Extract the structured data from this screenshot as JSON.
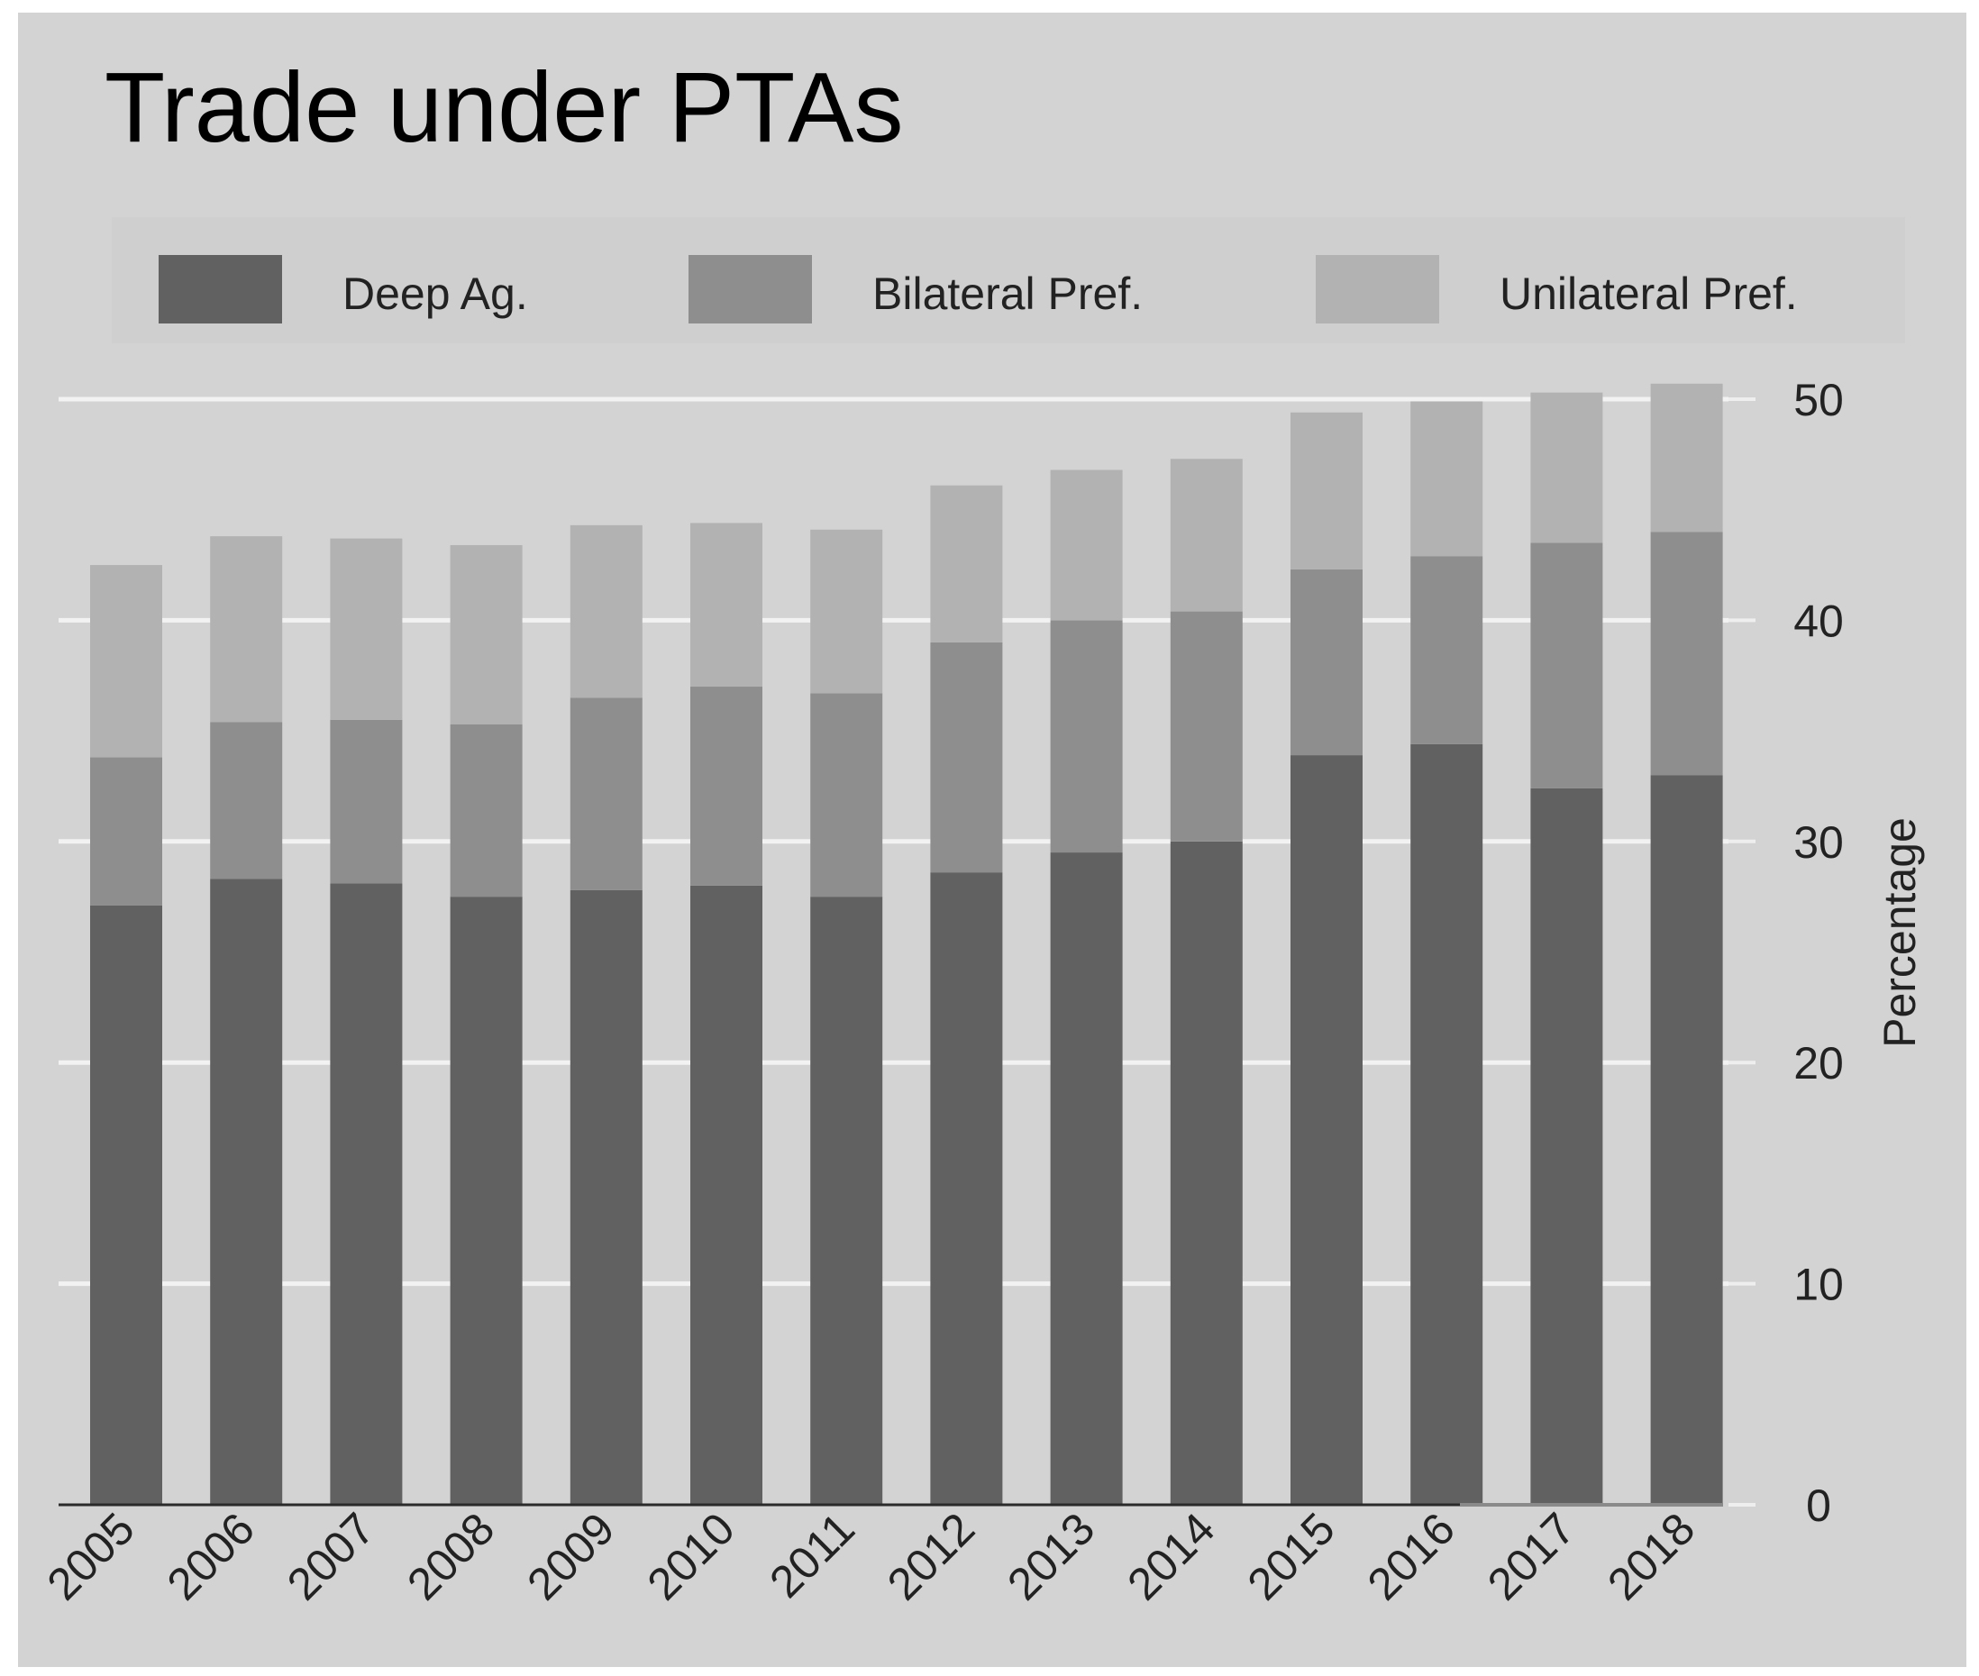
{
  "chart_data": {
    "type": "bar",
    "stacked": true,
    "title": "Trade under PTAs",
    "xlabel": "",
    "ylabel": "Percentage",
    "y_axis_side": "right",
    "ylim": [
      0,
      50
    ],
    "yticks": [
      0,
      10,
      20,
      30,
      40,
      50
    ],
    "grid": true,
    "legend_position": "top",
    "categories": [
      "2005",
      "2006",
      "2007",
      "2008",
      "2009",
      "2010",
      "2011",
      "2012",
      "2013",
      "2014",
      "2015",
      "2016",
      "2017",
      "2018"
    ],
    "series": [
      {
        "name": "Deep Ag.",
        "color": "#616161",
        "values": [
          27.1,
          28.3,
          28.1,
          27.5,
          27.8,
          28.0,
          27.5,
          28.6,
          29.5,
          30.0,
          33.9,
          34.4,
          32.4,
          33.0
        ]
      },
      {
        "name": "Bilateral Pref.",
        "color": "#8e8e8e",
        "values": [
          6.7,
          7.1,
          7.4,
          7.8,
          8.7,
          9.0,
          9.2,
          10.4,
          10.5,
          10.4,
          8.4,
          8.5,
          11.1,
          11.0
        ]
      },
      {
        "name": "Unilateral Pref.",
        "color": "#b2b2b2",
        "values": [
          8.7,
          8.4,
          8.2,
          8.1,
          7.8,
          7.4,
          7.4,
          7.1,
          6.8,
          6.9,
          7.1,
          7.0,
          6.8,
          6.7
        ]
      }
    ]
  }
}
